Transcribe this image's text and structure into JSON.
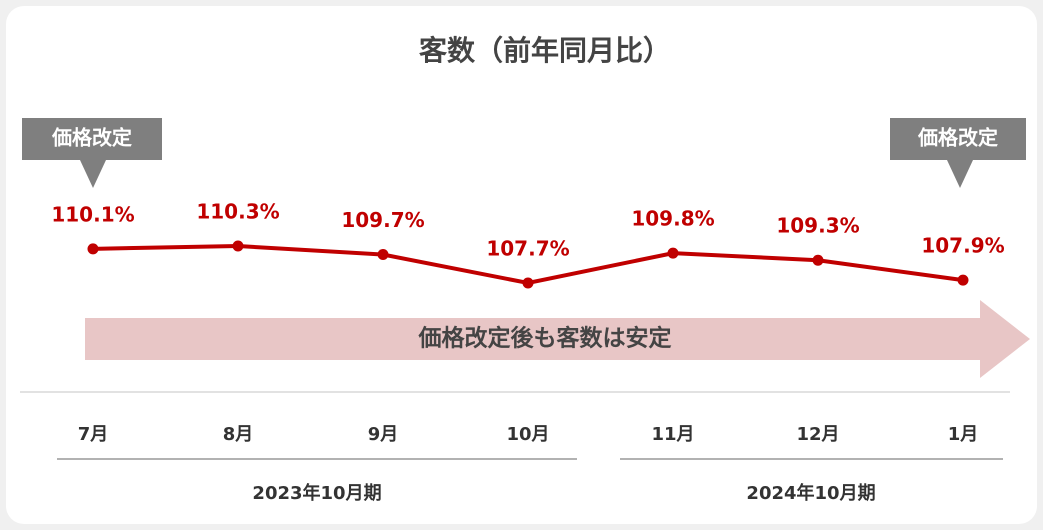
{
  "chart_data": {
    "type": "line",
    "title": "客数（前年同月比）",
    "categories": [
      "7月",
      "8月",
      "9月",
      "10月",
      "11月",
      "12月",
      "1月"
    ],
    "series": [
      {
        "name": null,
        "color": "#c00000",
        "values": [
          110.1,
          110.3,
          109.7,
          107.7,
          109.8,
          109.3,
          107.9
        ],
        "value_labels": [
          "110.1%",
          "110.3%",
          "109.7%",
          "107.7%",
          "109.8%",
          "109.3%",
          "107.9%"
        ]
      }
    ],
    "annotations": [
      "価格改定",
      "価格改定"
    ],
    "arrow_text": "価格改定後も客数は安定",
    "groups": [
      "2023年10月期",
      "2024年10月期"
    ]
  }
}
